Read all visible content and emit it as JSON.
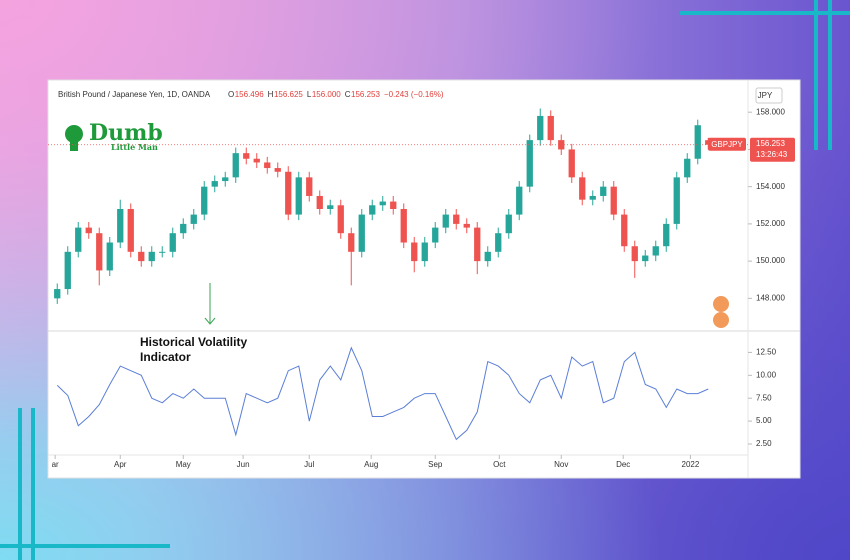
{
  "logo": {
    "title": "Dumb",
    "subtitle": "Little Man"
  },
  "chart_data": [
    {
      "type": "candlestick",
      "title": "British Pound / Japanese Yen, 1D, OANDA",
      "header": [
        "O",
        "156.496",
        "H",
        "156.625",
        "L",
        "156.000",
        "C",
        "156.253",
        "−0.243 (−0.16%)"
      ],
      "currency": "JPY",
      "symbol": "GBPJPY",
      "last_price": {
        "value": 156.253,
        "label": "156.253"
      },
      "countdown": "13:26:43",
      "up_color": "#26a69a",
      "down_color": "#ef5350",
      "open": [
        148.0,
        148.5,
        150.5,
        151.8,
        151.5,
        149.5,
        151.0,
        152.8,
        150.5,
        150.0,
        150.5,
        150.5,
        151.5,
        152.0,
        152.5,
        154.0,
        154.3,
        154.5,
        155.8,
        155.5,
        155.3,
        155.0,
        154.8,
        152.5,
        154.5,
        153.5,
        152.8,
        153.0,
        151.5,
        150.5,
        152.5,
        153.0,
        153.2,
        152.8,
        151.0,
        150.0,
        151.0,
        151.8,
        152.5,
        152.0,
        151.8,
        150.0,
        150.5,
        151.5,
        152.5,
        154.0,
        156.5,
        157.8,
        156.5,
        156.0,
        154.5,
        153.3,
        153.5,
        154.0,
        152.5,
        150.8,
        150.0,
        150.3,
        150.8,
        152.0,
        154.5,
        155.5,
        156.496
      ],
      "high": [
        148.8,
        150.8,
        152.1,
        152.1,
        151.8,
        151.3,
        153.3,
        153.1,
        150.8,
        150.8,
        150.8,
        151.8,
        152.3,
        152.8,
        154.3,
        154.6,
        154.8,
        156.1,
        156.1,
        155.8,
        155.6,
        155.3,
        155.1,
        154.8,
        154.8,
        153.8,
        153.3,
        153.3,
        151.8,
        152.8,
        153.3,
        153.5,
        153.5,
        153.1,
        151.3,
        151.3,
        152.1,
        152.8,
        152.8,
        152.3,
        152.1,
        150.8,
        151.8,
        152.8,
        154.3,
        156.8,
        158.2,
        158.1,
        156.8,
        156.3,
        154.8,
        153.8,
        154.3,
        154.3,
        152.8,
        151.1,
        150.6,
        151.1,
        152.3,
        154.8,
        155.8,
        157.6,
        156.625
      ],
      "low": [
        147.7,
        148.2,
        150.2,
        151.2,
        148.7,
        149.2,
        150.7,
        150.2,
        149.7,
        149.7,
        150.2,
        150.2,
        151.2,
        151.7,
        152.2,
        153.7,
        154.0,
        154.2,
        155.2,
        155.0,
        154.7,
        154.5,
        152.2,
        152.2,
        153.2,
        152.5,
        152.5,
        151.2,
        148.7,
        150.2,
        152.2,
        152.7,
        152.5,
        150.7,
        149.4,
        149.7,
        150.7,
        151.5,
        151.7,
        151.5,
        149.3,
        149.7,
        150.2,
        151.2,
        152.2,
        153.7,
        156.2,
        156.2,
        155.7,
        154.2,
        153.0,
        153.0,
        153.2,
        152.2,
        150.5,
        149.1,
        149.7,
        150.0,
        150.5,
        151.7,
        154.2,
        155.2,
        156.0
      ],
      "close": [
        148.5,
        150.5,
        151.8,
        151.5,
        149.5,
        151.0,
        152.8,
        150.5,
        150.0,
        150.5,
        150.5,
        151.5,
        152.0,
        152.5,
        154.0,
        154.3,
        154.5,
        155.8,
        155.5,
        155.3,
        155.0,
        154.8,
        152.5,
        154.5,
        153.5,
        152.8,
        153.0,
        151.5,
        150.5,
        152.5,
        153.0,
        153.2,
        152.8,
        151.0,
        150.0,
        151.0,
        151.8,
        152.5,
        152.0,
        151.8,
        150.0,
        150.5,
        151.5,
        152.5,
        154.0,
        156.5,
        157.8,
        156.5,
        156.0,
        154.5,
        153.3,
        153.5,
        154.0,
        152.5,
        150.8,
        150.0,
        150.3,
        150.8,
        152.0,
        154.5,
        155.5,
        157.3,
        156.253
      ],
      "xlim": [
        0,
        66
      ],
      "ylim": [
        146.3,
        159.3
      ],
      "yticks": [
        {
          "value": 148,
          "label": "148.000"
        },
        {
          "value": 150,
          "label": "150.000"
        },
        {
          "value": 152,
          "label": "152.000"
        },
        {
          "value": 154,
          "label": "154.000"
        },
        {
          "value": 156,
          "label": "156.000"
        },
        {
          "value": 158,
          "label": "158.000"
        }
      ]
    },
    {
      "type": "line",
      "annotation": "Historical Volatility Indicator",
      "color": "#5b7fd6",
      "values": [
        8.9,
        7.8,
        4.5,
        5.5,
        6.8,
        9.0,
        11.0,
        10.5,
        10.0,
        7.5,
        7.0,
        8.0,
        7.5,
        8.5,
        7.5,
        7.5,
        7.5,
        3.5,
        8.0,
        7.5,
        7.0,
        7.5,
        10.5,
        11.0,
        5.0,
        9.5,
        11.0,
        9.5,
        13.0,
        10.5,
        5.5,
        5.5,
        6.0,
        6.5,
        7.5,
        8.0,
        8.0,
        5.5,
        3.0,
        4.0,
        6.0,
        11.5,
        11.0,
        10.0,
        8.0,
        7.0,
        9.5,
        10.0,
        7.5,
        12.0,
        11.0,
        11.5,
        7.0,
        7.5,
        11.5,
        12.5,
        9.0,
        8.5,
        6.5,
        8.5,
        8.0,
        8.0,
        8.5
      ],
      "xlim": [
        0,
        66
      ],
      "xticks": [
        {
          "value": 0.3,
          "label": "ar"
        },
        {
          "value": 6.5,
          "label": "Apr"
        },
        {
          "value": 12.5,
          "label": "May"
        },
        {
          "value": 18.2,
          "label": "Jun"
        },
        {
          "value": 24.5,
          "label": "Jul"
        },
        {
          "value": 30.4,
          "label": "Aug"
        },
        {
          "value": 36.5,
          "label": "Sep"
        },
        {
          "value": 42.6,
          "label": "Oct"
        },
        {
          "value": 48.5,
          "label": "Nov"
        },
        {
          "value": 54.4,
          "label": "Dec"
        },
        {
          "value": 60.8,
          "label": "2022"
        }
      ],
      "ylim": [
        1.3,
        14.4
      ],
      "yticks": [
        {
          "value": 2.5,
          "label": "2.50"
        },
        {
          "value": 5,
          "label": "5.00"
        },
        {
          "value": 7.5,
          "label": "7.50"
        },
        {
          "value": 10,
          "label": "10.00"
        },
        {
          "value": 12.5,
          "label": "12.50"
        }
      ]
    }
  ]
}
